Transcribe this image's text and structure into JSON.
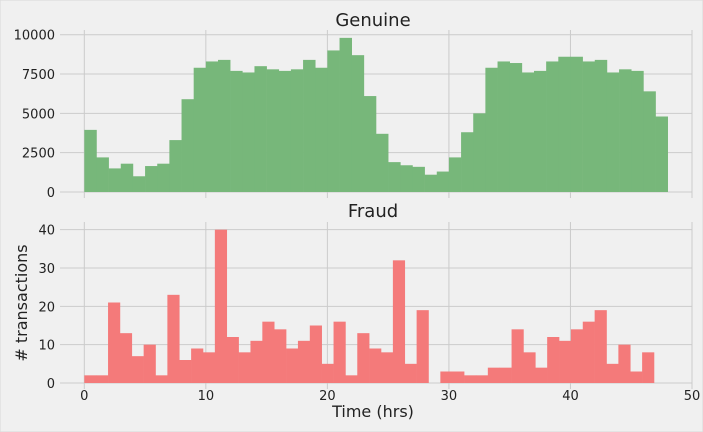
{
  "colors": {
    "background": "#f0f0f0",
    "grid": "#cbcbcb",
    "genuine": "#77b77a",
    "fraud": "#f47a7a"
  },
  "chart_data": [
    {
      "type": "bar",
      "title": "Genuine",
      "xlabel": "",
      "ylabel": "",
      "bin_width": 1,
      "bin_start": 0,
      "xlim": [
        -2,
        50
      ],
      "ylim": [
        0,
        10300
      ],
      "xticks": [
        0,
        10,
        20,
        30,
        40,
        50
      ],
      "yticks": [
        0,
        2500,
        5000,
        7500,
        10000
      ],
      "ytick_labels": [
        "0",
        "2500",
        "5000",
        "7500",
        "10000"
      ],
      "show_xtick_labels": false,
      "grid": true,
      "color": "genuine",
      "values": [
        3950,
        2200,
        1500,
        1800,
        1000,
        1650,
        1800,
        3300,
        5900,
        7900,
        8300,
        8400,
        7700,
        7600,
        8000,
        7800,
        7700,
        7800,
        8400,
        7900,
        9000,
        9800,
        8700,
        6100,
        3700,
        1900,
        1700,
        1600,
        1100,
        1300,
        2200,
        3800,
        5000,
        7900,
        8300,
        8200,
        7600,
        7700,
        8300,
        8600,
        8600,
        8300,
        8400,
        7600,
        7800,
        7700,
        6400,
        4800
      ]
    },
    {
      "type": "bar",
      "title": "Fraud",
      "xlabel": "Time (hrs)",
      "ylabel": "# transactions",
      "bin_width": 0.9765,
      "bin_start": 0,
      "xlim": [
        -2,
        50
      ],
      "ylim": [
        0,
        42
      ],
      "xticks": [
        0,
        10,
        20,
        30,
        40,
        50
      ],
      "xtick_labels": [
        "0",
        "10",
        "20",
        "30",
        "40",
        "50"
      ],
      "yticks": [
        0,
        10,
        20,
        30,
        40
      ],
      "ytick_labels": [
        "0",
        "10",
        "20",
        "30",
        "40"
      ],
      "show_xtick_labels": true,
      "grid": true,
      "color": "fraud",
      "values": [
        2,
        2,
        21,
        13,
        7,
        10,
        2,
        23,
        6,
        9,
        8,
        40,
        12,
        8,
        11,
        16,
        14,
        9,
        11,
        15,
        5,
        16,
        2,
        13,
        9,
        8,
        32,
        5,
        19,
        0,
        3,
        3,
        2,
        2,
        4,
        4,
        14,
        8,
        4,
        12,
        11,
        14,
        16,
        19,
        5,
        10,
        3,
        8
      ]
    }
  ]
}
